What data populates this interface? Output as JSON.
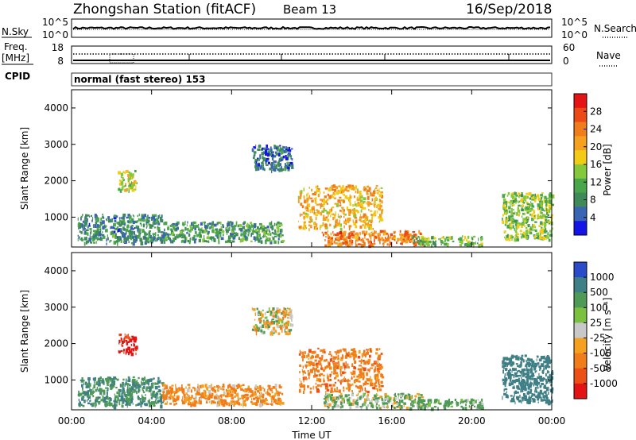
{
  "header": {
    "title": "Zhongshan Station (fitACF)",
    "beam": "Beam 13",
    "date": "16/Sep/2018"
  },
  "strips": {
    "nsky_label": "N.Sky",
    "nsky_ticks": [
      "10^5",
      "10^0"
    ],
    "nsearch_label": "N.Search",
    "nsearch_ticks": [
      "10^5",
      "10^0"
    ],
    "freq_label_1": "Freq.",
    "freq_label_2": "[MHz]",
    "freq_ticks": [
      "18",
      "8"
    ],
    "nave_label": "Nave",
    "nave_ticks": [
      "60",
      "0"
    ],
    "cpid_label": "CPID",
    "cpid_text": "normal (fast stereo) 153"
  },
  "colorbars": {
    "power": {
      "label": "Power [dB]",
      "ticks": [
        "28",
        "24",
        "20",
        "16",
        "12",
        "8",
        "4"
      ],
      "colors": [
        "#1414e6",
        "#3a64b4",
        "#3f8a58",
        "#49a64a",
        "#86c83c",
        "#f2cc14",
        "#f5a01e",
        "#f07c1a",
        "#ec4a14",
        "#e41414"
      ]
    },
    "velocity": {
      "label": "Velocity [m s⁻¹]",
      "ticks": [
        "1000",
        "500",
        "100",
        "25",
        "-25",
        "-100",
        "-500",
        "-1000"
      ],
      "colors": [
        "#2a4cc8",
        "#3f7f86",
        "#4f9a56",
        "#7cc040",
        "#c8c8c8",
        "#f5a01e",
        "#f07c1a",
        "#ec5014",
        "#e41414"
      ]
    }
  },
  "chart_data": [
    {
      "type": "heatmap",
      "title": "Zhongshan Station (fitACF) Beam 13",
      "ylabel": "Slant Range [km]",
      "xlabel": "Time UT",
      "x_ticks": [
        "00:00",
        "04:00",
        "08:00",
        "12:00",
        "16:00",
        "20:00",
        "00:00"
      ],
      "y_ticks": [
        "4000",
        "3000",
        "2000",
        "1000"
      ],
      "ylim": [
        180,
        4500
      ],
      "xlim_hours": [
        0,
        24
      ],
      "colorbar": "Power [dB]",
      "colorbar_ticks": [
        4,
        8,
        12,
        16,
        20,
        24,
        28
      ],
      "echo_regions": [
        {
          "t_start": 0.3,
          "t_end": 4.5,
          "r_min": 300,
          "r_max": 1100,
          "value": 8
        },
        {
          "t_start": 2.3,
          "t_end": 3.2,
          "r_min": 1750,
          "r_max": 2300,
          "value": 16
        },
        {
          "t_start": 4.5,
          "t_end": 10.5,
          "r_min": 350,
          "r_max": 900,
          "value": 10
        },
        {
          "t_start": 9.0,
          "t_end": 11.0,
          "r_min": 2300,
          "r_max": 3000,
          "value": 6
        },
        {
          "t_start": 11.3,
          "t_end": 15.5,
          "r_min": 700,
          "r_max": 1900,
          "value": 20
        },
        {
          "t_start": 12.5,
          "t_end": 17.5,
          "r_min": 250,
          "r_max": 650,
          "value": 24
        },
        {
          "t_start": 17.0,
          "t_end": 20.5,
          "r_min": 250,
          "r_max": 500,
          "value": 12
        },
        {
          "t_start": 21.5,
          "t_end": 24.0,
          "r_min": 400,
          "r_max": 1700,
          "value": 14
        }
      ]
    },
    {
      "type": "heatmap",
      "ylabel": "Slant Range [km]",
      "xlabel": "Time UT",
      "x_ticks": [
        "00:00",
        "04:00",
        "08:00",
        "12:00",
        "16:00",
        "20:00",
        "00:00"
      ],
      "y_ticks": [
        "4000",
        "3000",
        "2000",
        "1000"
      ],
      "ylim": [
        180,
        4500
      ],
      "xlim_hours": [
        0,
        24
      ],
      "colorbar": "Velocity [m s⁻¹]",
      "colorbar_ticks": [
        1000,
        500,
        100,
        25,
        -25,
        -100,
        -500,
        -1000
      ],
      "echo_regions": [
        {
          "t_start": 0.3,
          "t_end": 4.5,
          "r_min": 300,
          "r_max": 1100,
          "value": 300
        },
        {
          "t_start": 2.3,
          "t_end": 3.2,
          "r_min": 1750,
          "r_max": 2300,
          "value": -800
        },
        {
          "t_start": 4.5,
          "t_end": 10.5,
          "r_min": 350,
          "r_max": 900,
          "value": -150
        },
        {
          "t_start": 9.0,
          "t_end": 11.0,
          "r_min": 2300,
          "r_max": 3000,
          "value": 0
        },
        {
          "t_start": 11.3,
          "t_end": 15.5,
          "r_min": 700,
          "r_max": 1900,
          "value": -200
        },
        {
          "t_start": 12.5,
          "t_end": 17.5,
          "r_min": 250,
          "r_max": 650,
          "value": 80
        },
        {
          "t_start": 17.0,
          "t_end": 20.5,
          "r_min": 250,
          "r_max": 500,
          "value": 150
        },
        {
          "t_start": 21.5,
          "t_end": 24.0,
          "r_min": 400,
          "r_max": 1700,
          "value": 450
        }
      ]
    }
  ]
}
